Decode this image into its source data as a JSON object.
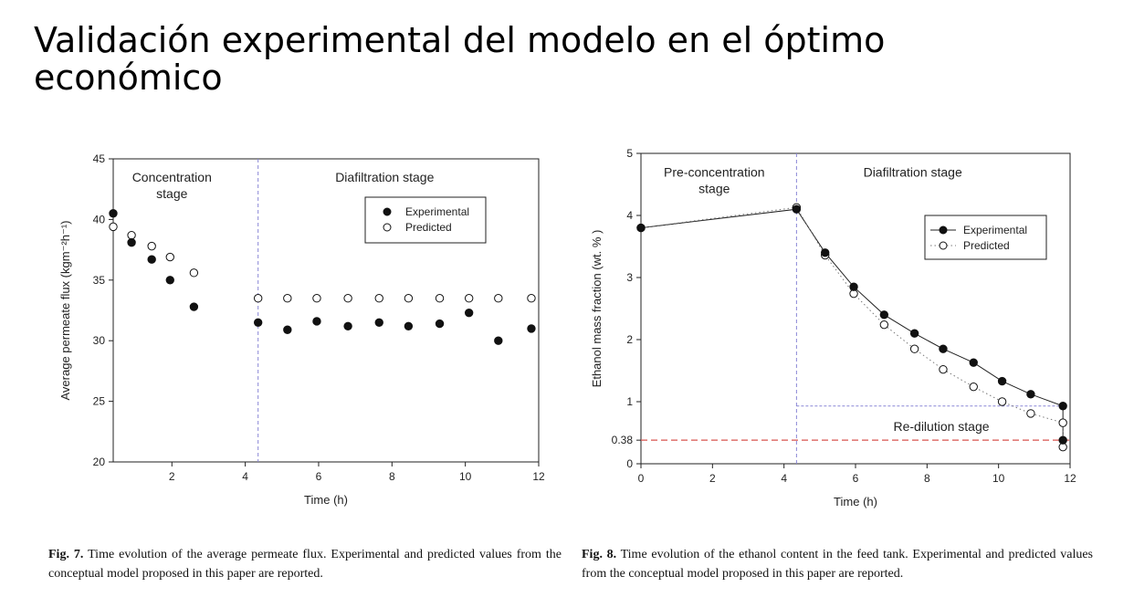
{
  "slide": {
    "title": "Validación experimental del modelo en el óptimo económico"
  },
  "chart_data": [
    {
      "type": "scatter",
      "xlabel": "Time (h)",
      "ylabel": "Average permeate flux (kgm⁻²h⁻¹)",
      "xlim": [
        0.4,
        12
      ],
      "ylim": [
        20,
        45
      ],
      "xticks": [
        2,
        4,
        6,
        8,
        10,
        12
      ],
      "yticks": [
        20,
        25,
        30,
        35,
        40,
        45
      ],
      "stage_divider_x": 4.35,
      "annotations": [
        {
          "lines": [
            "Concentration",
            "stage"
          ],
          "x": 2.0,
          "y": 43.5
        },
        {
          "lines": [
            "Diafiltration stage"
          ],
          "x": 7.8,
          "y": 43.5
        }
      ],
      "legend_position": "top-right",
      "series": [
        {
          "name": "Experimental",
          "marker": "filled-circle",
          "x": [
            0.4,
            0.9,
            1.45,
            1.95,
            2.6,
            4.35,
            5.15,
            5.95,
            6.8,
            7.65,
            8.45,
            9.3,
            10.1,
            10.9,
            11.8
          ],
          "y": [
            40.5,
            38.1,
            36.7,
            35.0,
            32.8,
            31.5,
            30.9,
            31.6,
            31.2,
            31.5,
            31.2,
            31.4,
            32.3,
            30.0,
            31.0
          ]
        },
        {
          "name": "Predicted",
          "marker": "open-circle",
          "x": [
            0.4,
            0.9,
            1.45,
            1.95,
            2.6,
            4.35,
            5.15,
            5.95,
            6.8,
            7.65,
            8.45,
            9.3,
            10.1,
            10.9,
            11.8
          ],
          "y": [
            39.4,
            38.7,
            37.8,
            36.9,
            35.6,
            33.5,
            33.5,
            33.5,
            33.5,
            33.5,
            33.5,
            33.5,
            33.5,
            33.5,
            33.5
          ]
        }
      ],
      "caption": {
        "label": "Fig. 7.",
        "text": "Time evolution of the average permeate flux. Experimental and predicted values from the conceptual model proposed in this paper are reported."
      }
    },
    {
      "type": "line",
      "xlabel": "Time (h)",
      "ylabel": "Ethanol mass fraction  (wt. % )",
      "xlim": [
        0,
        12
      ],
      "ylim": [
        0,
        5
      ],
      "xticks": [
        0,
        2,
        4,
        6,
        8,
        10,
        12
      ],
      "yticks": [
        0,
        1,
        2,
        3,
        4,
        5
      ],
      "extra_ytick": 0.38,
      "stage_divider_x": 4.35,
      "reference_line": {
        "y": 0.38,
        "color": "#d9534f"
      },
      "redilution_line": {
        "y": 0.93,
        "x_start": 4.35,
        "x_end": 11.8
      },
      "annotations": [
        {
          "lines": [
            "Pre-concentration",
            "stage"
          ],
          "x": 2.05,
          "y": 4.7
        },
        {
          "lines": [
            "Diafiltration stage"
          ],
          "x": 7.6,
          "y": 4.7
        },
        {
          "lines": [
            "Re-dilution stage"
          ],
          "x": 8.4,
          "y": 0.6
        }
      ],
      "legend_position": "top-right",
      "series": [
        {
          "name": "Experimental",
          "marker": "filled-circle",
          "line": "solid",
          "x": [
            0,
            4.35,
            5.15,
            5.95,
            6.8,
            7.65,
            8.45,
            9.3,
            10.1,
            10.9,
            11.8,
            11.8
          ],
          "y": [
            3.8,
            4.1,
            3.4,
            2.85,
            2.4,
            2.1,
            1.85,
            1.63,
            1.33,
            1.12,
            0.93,
            0.38
          ]
        },
        {
          "name": "Predicted",
          "marker": "open-circle",
          "line": "dotted",
          "x": [
            0,
            4.35,
            5.15,
            5.95,
            6.8,
            7.65,
            8.45,
            9.3,
            10.1,
            10.9,
            11.8,
            11.8
          ],
          "y": [
            3.8,
            4.13,
            3.36,
            2.74,
            2.24,
            1.85,
            1.52,
            1.24,
            1.0,
            0.81,
            0.66,
            0.27
          ]
        }
      ],
      "caption": {
        "label": "Fig. 8.",
        "text": "Time evolution of the ethanol content in the feed tank. Experimental and predicted values from the conceptual model proposed in this paper are reported."
      }
    }
  ]
}
